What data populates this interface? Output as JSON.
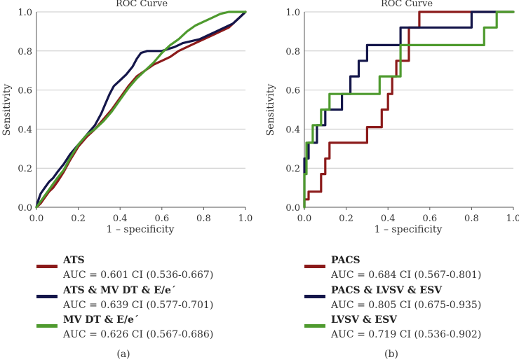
{
  "panels": [
    {
      "caption": "(a)",
      "chart_data": {
        "type": "line",
        "title": "ROC Curve",
        "xlabel": "1 – specificity",
        "ylabel": "Sensitivity",
        "xlim": [
          0,
          1
        ],
        "ylim": [
          0,
          1
        ],
        "xticks": [
          "0.0",
          "0.2",
          "0.4",
          "0.6",
          "0.8",
          "1.0"
        ],
        "yticks": [
          "0.0",
          "0.2",
          "0.4",
          "0.6",
          "0.8",
          "1.0"
        ],
        "grid": "horizontal",
        "series": [
          {
            "name": "ATS",
            "auc_text": "AUC = 0.601 CI (0.536-0.667)",
            "color": "#8b1a1a",
            "x": [
              0,
              0.02,
              0.04,
              0.06,
              0.08,
              0.1,
              0.13,
              0.16,
              0.2,
              0.24,
              0.28,
              0.32,
              0.36,
              0.4,
              0.44,
              0.48,
              0.52,
              0.56,
              0.6,
              0.64,
              0.68,
              0.72,
              0.76,
              0.8,
              0.84,
              0.88,
              0.92,
              0.96,
              1.0
            ],
            "y": [
              0,
              0.02,
              0.05,
              0.08,
              0.1,
              0.13,
              0.18,
              0.24,
              0.31,
              0.36,
              0.4,
              0.45,
              0.5,
              0.56,
              0.62,
              0.67,
              0.7,
              0.73,
              0.75,
              0.77,
              0.8,
              0.82,
              0.84,
              0.86,
              0.88,
              0.9,
              0.92,
              0.96,
              1.0
            ]
          },
          {
            "name": "ATS & MV DT & E/e´",
            "auc_text": "AUC = 0.639 CI (0.577-0.701)",
            "color": "#14164a",
            "x": [
              0,
              0.01,
              0.02,
              0.04,
              0.06,
              0.08,
              0.1,
              0.13,
              0.16,
              0.2,
              0.24,
              0.28,
              0.31,
              0.33,
              0.35,
              0.37,
              0.4,
              0.43,
              0.46,
              0.48,
              0.5,
              0.53,
              0.56,
              0.6,
              0.63,
              0.66,
              0.7,
              0.74,
              0.78,
              0.82,
              0.86,
              0.9,
              0.94,
              0.97,
              1.0
            ],
            "y": [
              0,
              0.04,
              0.07,
              0.1,
              0.13,
              0.15,
              0.18,
              0.22,
              0.27,
              0.32,
              0.37,
              0.42,
              0.48,
              0.53,
              0.58,
              0.62,
              0.65,
              0.68,
              0.72,
              0.76,
              0.79,
              0.8,
              0.8,
              0.8,
              0.81,
              0.82,
              0.84,
              0.85,
              0.86,
              0.88,
              0.9,
              0.92,
              0.94,
              0.97,
              1.0
            ]
          },
          {
            "name": "MV DT & E/e´",
            "auc_text": "AUC = 0.626 CI (0.567-0.686)",
            "color": "#4e9a2e",
            "x": [
              0,
              0.02,
              0.04,
              0.06,
              0.08,
              0.1,
              0.13,
              0.16,
              0.2,
              0.24,
              0.28,
              0.32,
              0.36,
              0.4,
              0.44,
              0.48,
              0.52,
              0.56,
              0.6,
              0.64,
              0.68,
              0.72,
              0.76,
              0.8,
              0.84,
              0.88,
              0.92,
              0.96,
              1.0
            ],
            "y": [
              0,
              0.03,
              0.06,
              0.09,
              0.12,
              0.15,
              0.19,
              0.25,
              0.32,
              0.37,
              0.4,
              0.44,
              0.49,
              0.55,
              0.61,
              0.66,
              0.7,
              0.74,
              0.79,
              0.83,
              0.86,
              0.9,
              0.93,
              0.95,
              0.97,
              0.99,
              1.0,
              1.0,
              1.0
            ]
          }
        ]
      }
    },
    {
      "caption": "(b)",
      "chart_data": {
        "type": "line",
        "title": "ROC Curve",
        "xlabel": "1 – specificity",
        "ylabel": "Sensitivity",
        "xlim": [
          0,
          1
        ],
        "ylim": [
          0,
          1
        ],
        "xticks": [
          "0.0",
          "0.2",
          "0.4",
          "0.6",
          "0.8",
          "1.0"
        ],
        "yticks": [
          "0.0",
          "0.2",
          "0.4",
          "0.6",
          "0.8",
          "1.0"
        ],
        "grid": "horizontal",
        "series": [
          {
            "name": "PACS",
            "auc_text": "AUC = 0.684 CI (0.567-0.801)",
            "color": "#8b1a1a",
            "x": [
              0,
              0,
              0.02,
              0.02,
              0.08,
              0.08,
              0.1,
              0.1,
              0.12,
              0.12,
              0.3,
              0.3,
              0.37,
              0.37,
              0.4,
              0.4,
              0.42,
              0.42,
              0.44,
              0.44,
              0.5,
              0.5,
              0.55,
              0.55,
              1.0
            ],
            "y": [
              0,
              0.04,
              0.04,
              0.08,
              0.08,
              0.17,
              0.17,
              0.25,
              0.25,
              0.33,
              0.33,
              0.41,
              0.41,
              0.5,
              0.5,
              0.58,
              0.58,
              0.67,
              0.67,
              0.75,
              0.75,
              0.92,
              0.92,
              1.0,
              1.0
            ]
          },
          {
            "name": "PACS & LVSV & ESV",
            "auc_text": "AUC = 0.805 CI (0.675-0.935)",
            "color": "#14164a",
            "x": [
              0,
              0,
              0.02,
              0.02,
              0.06,
              0.06,
              0.1,
              0.1,
              0.18,
              0.18,
              0.22,
              0.22,
              0.26,
              0.26,
              0.3,
              0.3,
              0.46,
              0.46,
              0.8,
              0.8,
              1.0
            ],
            "y": [
              0,
              0.25,
              0.25,
              0.33,
              0.33,
              0.42,
              0.42,
              0.5,
              0.5,
              0.58,
              0.58,
              0.67,
              0.67,
              0.75,
              0.75,
              0.83,
              0.83,
              0.92,
              0.92,
              1.0,
              1.0
            ]
          },
          {
            "name": "LVSV & ESV",
            "auc_text": "AUC = 0.719 CI (0.536-0.902)",
            "color": "#4e9a2e",
            "x": [
              0,
              0,
              0.01,
              0.01,
              0.04,
              0.04,
              0.08,
              0.08,
              0.12,
              0.12,
              0.36,
              0.36,
              0.46,
              0.46,
              0.86,
              0.86,
              0.92,
              0.92,
              1.0
            ],
            "y": [
              0,
              0.17,
              0.17,
              0.33,
              0.33,
              0.42,
              0.42,
              0.5,
              0.5,
              0.58,
              0.58,
              0.67,
              0.67,
              0.83,
              0.83,
              0.92,
              0.92,
              1.0,
              1.0
            ]
          }
        ]
      }
    }
  ]
}
